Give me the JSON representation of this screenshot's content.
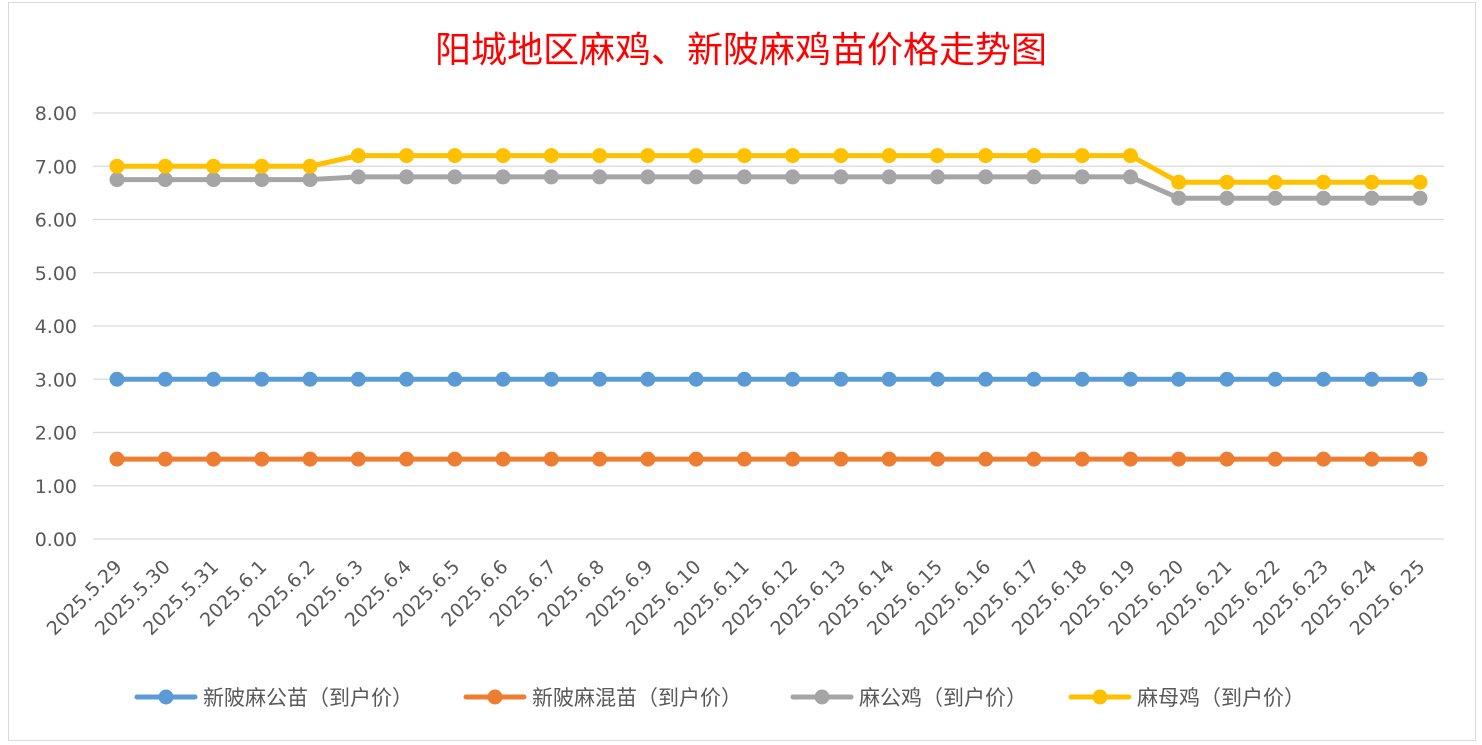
{
  "chart_data": {
    "type": "line",
    "title": "阳城地区麻鸡、新陂麻鸡苗价格走势图",
    "xlabel": "",
    "ylabel": "",
    "ylim": [
      0,
      8
    ],
    "y_ticks": [
      "0.00",
      "1.00",
      "2.00",
      "3.00",
      "4.00",
      "5.00",
      "6.00",
      "7.00",
      "8.00"
    ],
    "grid": true,
    "legend_position": "bottom",
    "categories": [
      "2025.5.29",
      "2025.5.30",
      "2025.5.31",
      "2025.6.1",
      "2025.6.2",
      "2025.6.3",
      "2025.6.4",
      "2025.6.5",
      "2025.6.6",
      "2025.6.7",
      "2025.6.8",
      "2025.6.9",
      "2025.6.10",
      "2025.6.11",
      "2025.6.12",
      "2025.6.13",
      "2025.6.14",
      "2025.6.15",
      "2025.6.16",
      "2025.6.17",
      "2025.6.18",
      "2025.6.19",
      "2025.6.20",
      "2025.6.21",
      "2025.6.22",
      "2025.6.23",
      "2025.6.24",
      "2025.6.25"
    ],
    "series": [
      {
        "name": "新陂麻公苗（到户价）",
        "color": "#5b9bd5",
        "values": [
          3,
          3,
          3,
          3,
          3,
          3,
          3,
          3,
          3,
          3,
          3,
          3,
          3,
          3,
          3,
          3,
          3,
          3,
          3,
          3,
          3,
          3,
          3,
          3,
          3,
          3,
          3,
          3
        ]
      },
      {
        "name": "新陂麻混苗（到户价）",
        "color": "#ed7d31",
        "values": [
          1.5,
          1.5,
          1.5,
          1.5,
          1.5,
          1.5,
          1.5,
          1.5,
          1.5,
          1.5,
          1.5,
          1.5,
          1.5,
          1.5,
          1.5,
          1.5,
          1.5,
          1.5,
          1.5,
          1.5,
          1.5,
          1.5,
          1.5,
          1.5,
          1.5,
          1.5,
          1.5,
          1.5
        ]
      },
      {
        "name": "麻公鸡（到户价）",
        "color": "#a5a5a5",
        "values": [
          6.75,
          6.75,
          6.75,
          6.75,
          6.75,
          6.8,
          6.8,
          6.8,
          6.8,
          6.8,
          6.8,
          6.8,
          6.8,
          6.8,
          6.8,
          6.8,
          6.8,
          6.8,
          6.8,
          6.8,
          6.8,
          6.8,
          6.4,
          6.4,
          6.4,
          6.4,
          6.4,
          6.4
        ]
      },
      {
        "name": "麻母鸡（到户价）",
        "color": "#ffc000",
        "values": [
          7,
          7,
          7,
          7,
          7,
          7.2,
          7.2,
          7.2,
          7.2,
          7.2,
          7.2,
          7.2,
          7.2,
          7.2,
          7.2,
          7.2,
          7.2,
          7.2,
          7.2,
          7.2,
          7.2,
          7.2,
          6.7,
          6.7,
          6.7,
          6.7,
          6.7,
          6.7
        ]
      }
    ]
  }
}
